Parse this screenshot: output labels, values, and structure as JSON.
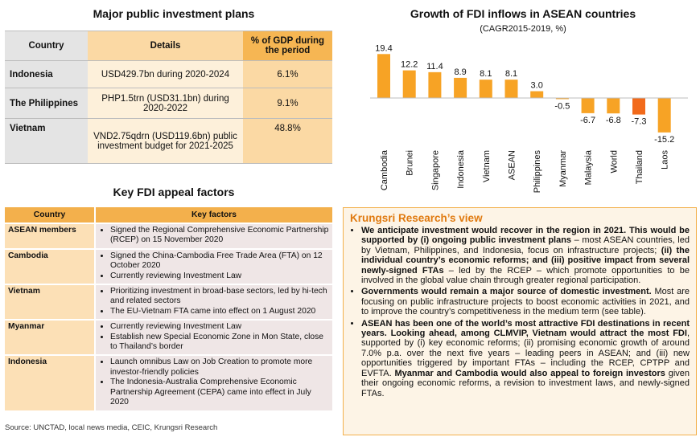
{
  "public_investment": {
    "title": "Major public investment plans",
    "headers": [
      "Country",
      "Details",
      "% of GDP during the period"
    ],
    "rows": [
      {
        "country": "Indonesia",
        "details": "USD429.7bn during 2020-2024",
        "gdp": "6.1%"
      },
      {
        "country": "The Philippines",
        "details": "PHP1.5trn (USD31.1bn) during 2020-2022",
        "gdp": "9.1%"
      },
      {
        "country": "Vietnam",
        "details": "VND2.75qdrn (USD119.6bn) public investment budget for 2021-2025",
        "gdp": "48.8%"
      }
    ]
  },
  "key_factors": {
    "title": "Key FDI appeal factors",
    "headers": [
      "Country",
      "Key factors"
    ],
    "rows": [
      {
        "country": "ASEAN members",
        "factors": [
          "Signed the Regional Comprehensive Economic Partnership (RCEP) on 15 November 2020"
        ]
      },
      {
        "country": "Cambodia",
        "factors": [
          "Signed the China-Cambodia Free Trade Area (FTA) on 12 October 2020",
          "Currently reviewing Investment Law"
        ]
      },
      {
        "country": "Vietnam",
        "factors": [
          "Prioritizing investment in broad-base sectors, led by hi-tech and related sectors",
          "The EU-Vietnam FTA came into effect on 1 August 2020"
        ]
      },
      {
        "country": "Myanmar",
        "factors": [
          "Currently reviewing Investment Law",
          "Establish new Special Economic Zone in Mon State, close to Thailand’s border"
        ]
      },
      {
        "country": "Indonesia",
        "factors": [
          "Launch omnibus Law on Job Creation to promote more investor-friendly policies",
          "The Indonesia-Australia Comprehensive Economic Partnership Agreement (CEPA) came into effect in July 2020"
        ]
      }
    ]
  },
  "chart_data": {
    "type": "bar",
    "title": "Growth of FDI inflows in ASEAN countries",
    "subtitle": "(CAGR2015-2019, %)",
    "categories": [
      "Cambodia",
      "Brunei",
      "Singapore",
      "Indonesia",
      "Vietnam",
      "ASEAN",
      "Philippines",
      "Myanmar",
      "Malaysia",
      "World",
      "Thailand",
      "Laos"
    ],
    "values": [
      19.4,
      12.2,
      11.4,
      8.9,
      8.1,
      8.1,
      3.0,
      -0.5,
      -6.7,
      -6.8,
      -7.3,
      -15.2
    ],
    "labels": [
      "19.4",
      "12.2",
      "11.4",
      "8.9",
      "8.1",
      "8.1",
      "3.0",
      "-0.5",
      "-6.7",
      "-6.8",
      "-7.3",
      "-15.2"
    ],
    "ylim": [
      -15.2,
      19.4
    ],
    "grid": false,
    "colors": {
      "default": "#f7a325",
      "highlight": "#f26a1b"
    },
    "highlight_category": "Thailand"
  },
  "view": {
    "title": "Krungsri Research’s view",
    "items": [
      [
        {
          "t": "We anticipate investment would recover in the region in 2021. This would be supported by (i) ongoing public investment plans",
          "b": true
        },
        {
          "t": " – most ASEAN countries, led by Vietnam, Philippines, and Indonesia, focus on infrastructure projects; ",
          "b": false
        },
        {
          "t": "(ii) the individual country’s economic reforms; and (iii) positive impact from several newly-signed FTAs",
          "b": true
        },
        {
          "t": " – led by the RCEP – which promote opportunities to be involved in the global value chain through greater regional participation.",
          "b": false
        }
      ],
      [
        {
          "t": "Governments would remain a major source of domestic investment.",
          "b": true
        },
        {
          "t": " Most are focusing on public infrastructure projects to boost economic activities in 2021, and to improve the country’s competitiveness in the medium term (see table).",
          "b": false
        }
      ],
      [
        {
          "t": "ASEAN has been one of the world’s most attractive FDI destinations in recent years. Looking ahead, among CLMVIP, Vietnam would attract the most FDI",
          "b": true
        },
        {
          "t": ", supported by (i) key economic reforms; (ii) promising economic growth of around 7.0% p.a. over the next five years – leading peers in ASEAN; and (iii) new opportunities triggered by important FTAs – including the RCEP, CPTPP and EVFTA. ",
          "b": false
        },
        {
          "t": "Myanmar and Cambodia would also appeal to foreign investors",
          "b": true
        },
        {
          "t": " given their ongoing economic reforms, a revision to investment laws, and newly-signed FTAs.",
          "b": false
        }
      ]
    ]
  },
  "source": "Source: UNCTAD, local news media, CEIC, Krungsri Research"
}
